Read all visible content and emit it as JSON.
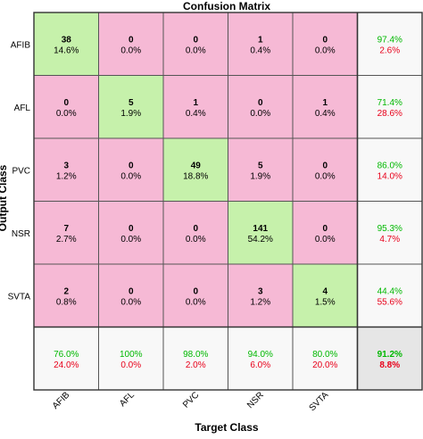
{
  "chart_data": {
    "type": "heatmap",
    "title": "Confusion Matrix",
    "xlabel": "Target Class",
    "ylabel": "Output Class",
    "row_labels": [
      "AFIB",
      "AFL",
      "PVC",
      "NSR",
      "SVTA"
    ],
    "col_labels": [
      "AFIB",
      "AFL",
      "PVC",
      "NSR",
      "SVTA"
    ],
    "cells": [
      [
        {
          "count": "38",
          "pct": "14.6%"
        },
        {
          "count": "0",
          "pct": "0.0%"
        },
        {
          "count": "0",
          "pct": "0.0%"
        },
        {
          "count": "1",
          "pct": "0.4%"
        },
        {
          "count": "0",
          "pct": "0.0%"
        }
      ],
      [
        {
          "count": "0",
          "pct": "0.0%"
        },
        {
          "count": "5",
          "pct": "1.9%"
        },
        {
          "count": "1",
          "pct": "0.4%"
        },
        {
          "count": "0",
          "pct": "0.0%"
        },
        {
          "count": "1",
          "pct": "0.4%"
        }
      ],
      [
        {
          "count": "3",
          "pct": "1.2%"
        },
        {
          "count": "0",
          "pct": "0.0%"
        },
        {
          "count": "49",
          "pct": "18.8%"
        },
        {
          "count": "5",
          "pct": "1.9%"
        },
        {
          "count": "0",
          "pct": "0.0%"
        }
      ],
      [
        {
          "count": "7",
          "pct": "2.7%"
        },
        {
          "count": "0",
          "pct": "0.0%"
        },
        {
          "count": "0",
          "pct": "0.0%"
        },
        {
          "count": "141",
          "pct": "54.2%"
        },
        {
          "count": "0",
          "pct": "0.0%"
        }
      ],
      [
        {
          "count": "2",
          "pct": "0.8%"
        },
        {
          "count": "0",
          "pct": "0.0%"
        },
        {
          "count": "0",
          "pct": "0.0%"
        },
        {
          "count": "3",
          "pct": "1.2%"
        },
        {
          "count": "4",
          "pct": "1.5%"
        }
      ]
    ],
    "row_summary": [
      {
        "correct": "97.4%",
        "wrong": "2.6%"
      },
      {
        "correct": "71.4%",
        "wrong": "28.6%"
      },
      {
        "correct": "86.0%",
        "wrong": "14.0%"
      },
      {
        "correct": "95.3%",
        "wrong": "4.7%"
      },
      {
        "correct": "44.4%",
        "wrong": "55.6%"
      }
    ],
    "col_summary": [
      {
        "correct": "76.0%",
        "wrong": "24.0%"
      },
      {
        "correct": "100%",
        "wrong": "0.0%"
      },
      {
        "correct": "98.0%",
        "wrong": "2.0%"
      },
      {
        "correct": "94.0%",
        "wrong": "6.0%"
      },
      {
        "correct": "80.0%",
        "wrong": "20.0%"
      }
    ],
    "overall": {
      "correct": "91.2%",
      "wrong": "8.8%"
    },
    "grid": true,
    "legend": "none"
  },
  "colors": {
    "diagonal": "#c6f1ab",
    "off_diagonal": "#f6b9d5",
    "summary": "#f8f8f8",
    "overall": "#e6e6e6",
    "correct_text": "#00b800",
    "wrong_text": "#e8001a",
    "grid": "#555555",
    "text": "#000000"
  }
}
